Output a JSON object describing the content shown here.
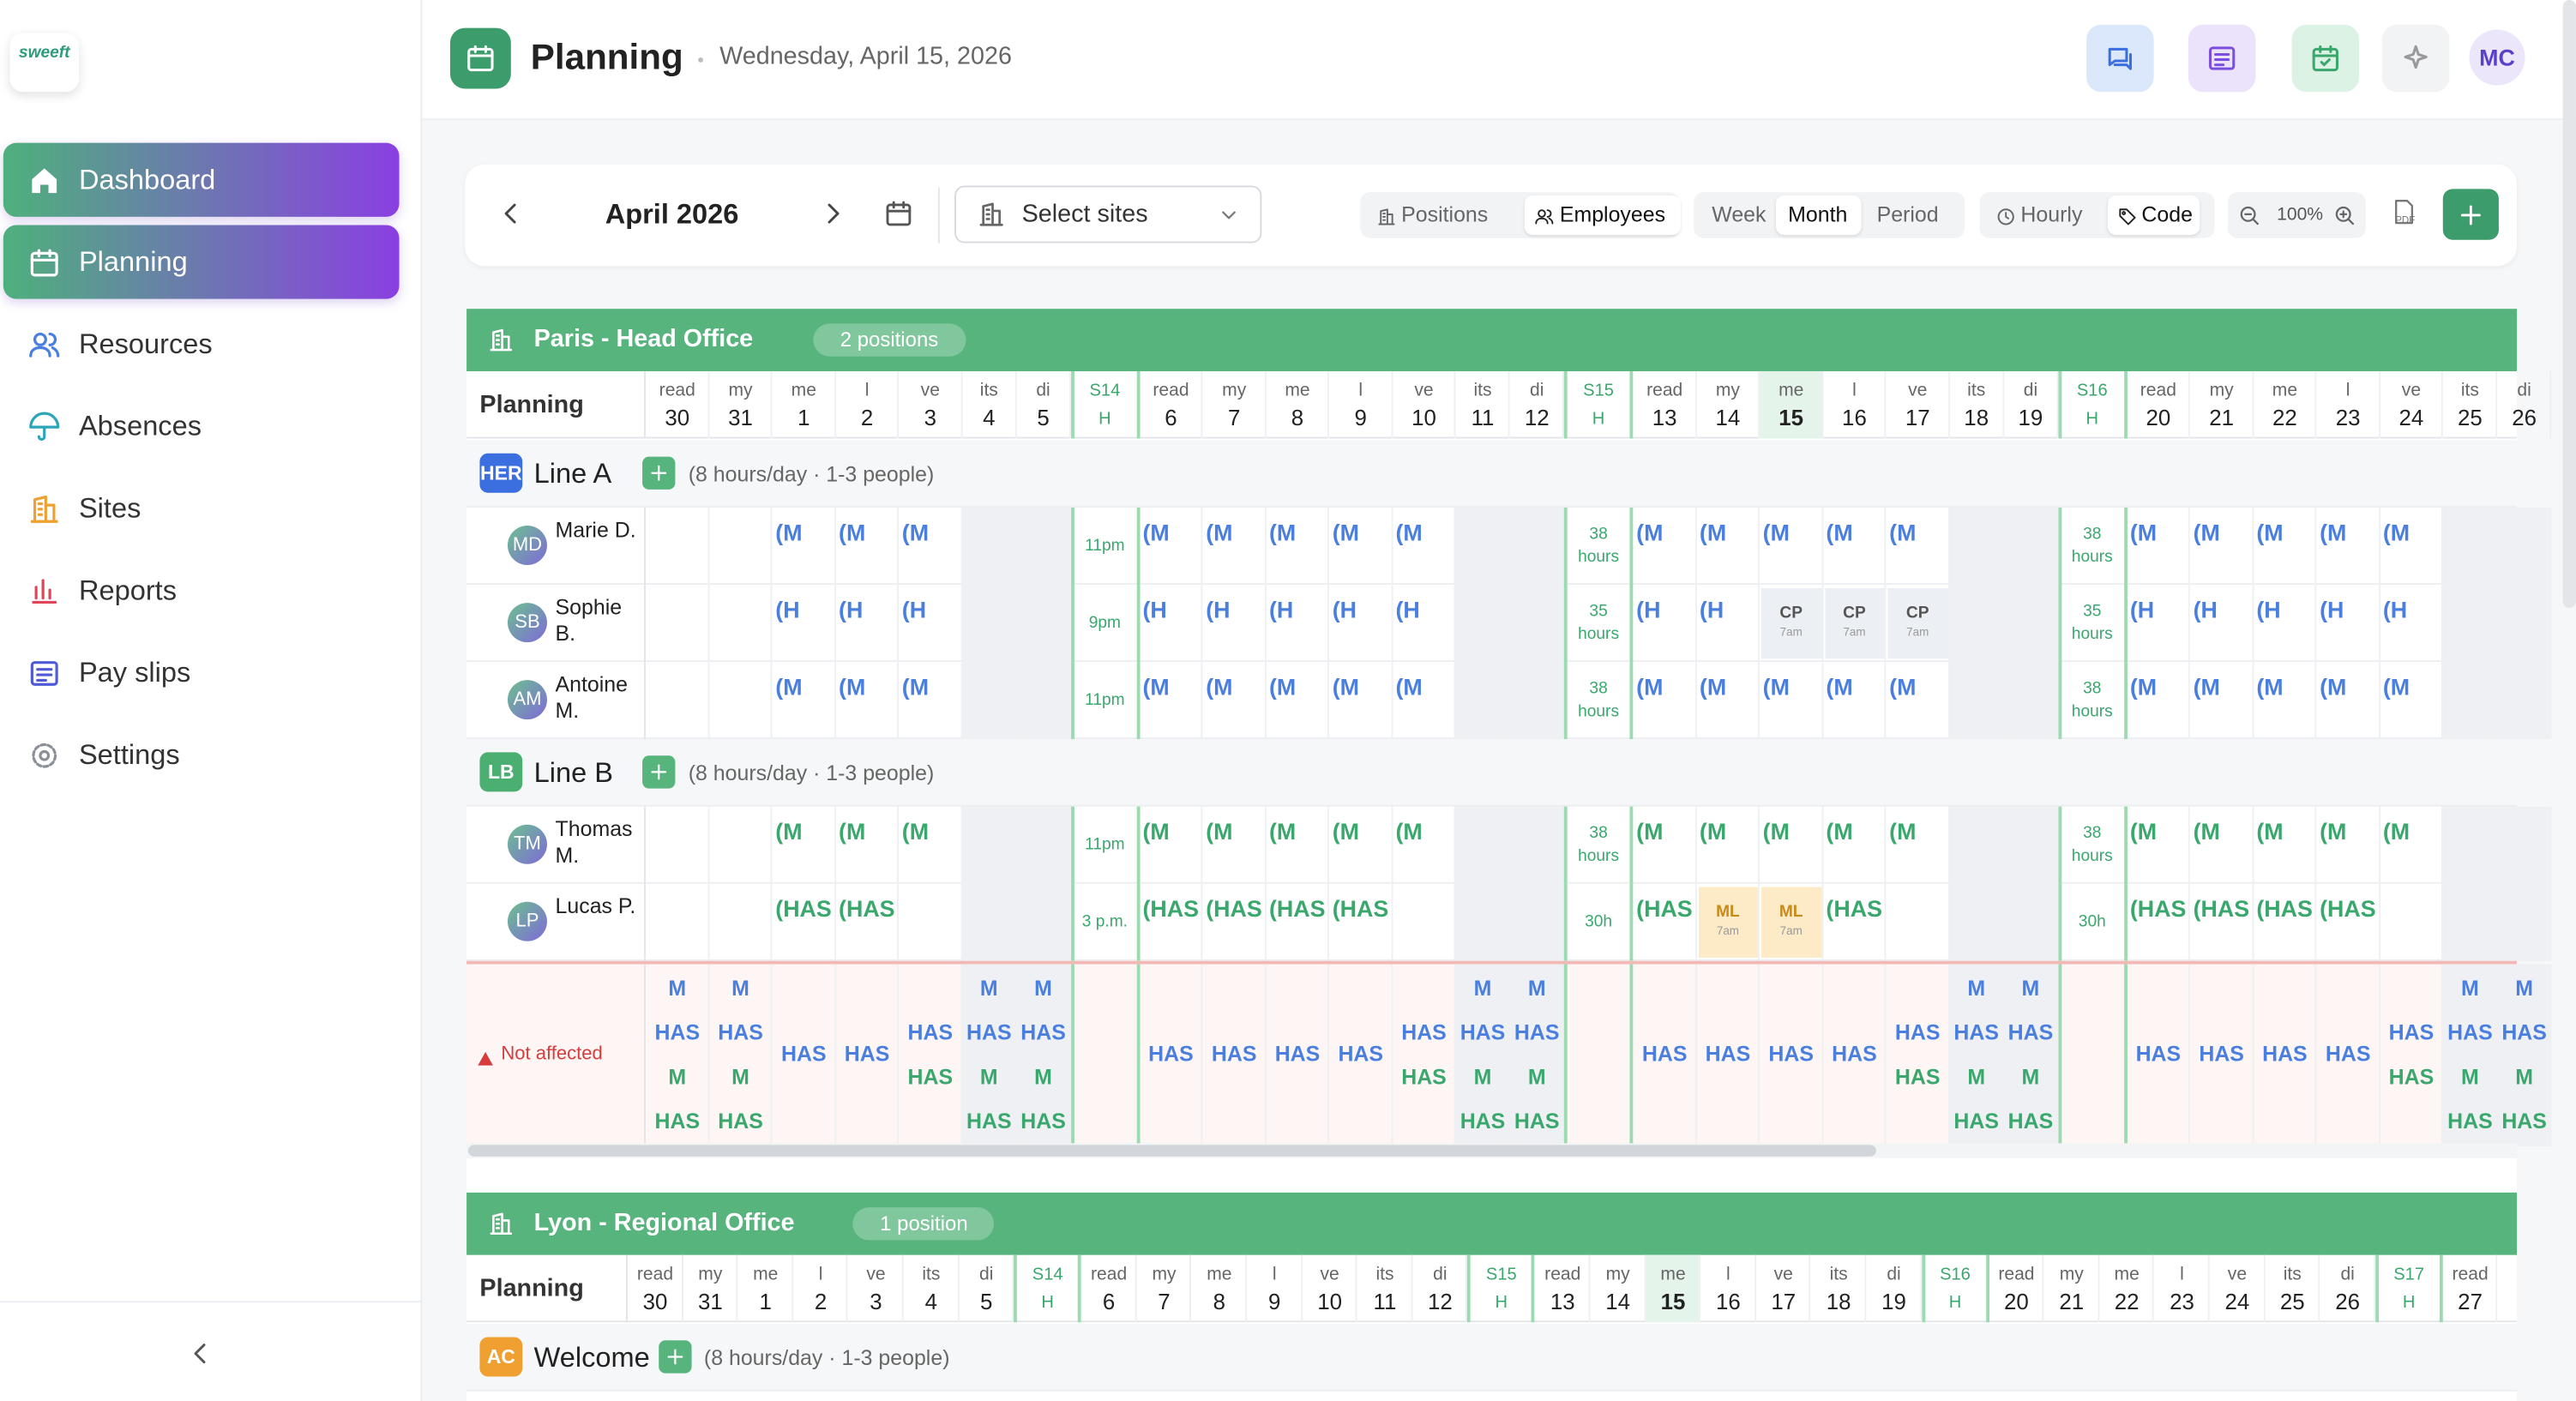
{
  "sidebar": {
    "logo": "sweeft",
    "nav": [
      "Dashboard",
      "Planning",
      "Resources",
      "Absences",
      "Sites",
      "Reports",
      "Pay slips",
      "Settings"
    ]
  },
  "header": {
    "title": "Planning",
    "date": "Wednesday, April 15, 2026",
    "avatar": "MC"
  },
  "toolbar": {
    "month": "April 2026",
    "sites": "Select sites",
    "view_by": [
      "Positions",
      "Employees"
    ],
    "ranges": [
      "Week",
      "Month",
      "Period"
    ],
    "display": [
      "Hourly",
      "Code"
    ],
    "zoom": "100%",
    "export": "PDF"
  },
  "absence_colors": {
    "CP": "#eceff4",
    "ML": "#fcebc6"
  },
  "sites": [
    {
      "name": "Paris - Head Office",
      "badge": "2 positions",
      "planning_label": "Planning",
      "columns": [
        [
          "read",
          "30"
        ],
        [
          "my",
          "31"
        ],
        [
          "me",
          "1"
        ],
        [
          "l",
          "2"
        ],
        [
          "ve",
          "3"
        ],
        [
          "its",
          "4"
        ],
        [
          "di",
          "5"
        ],
        [
          "S14",
          "H"
        ],
        [
          "read",
          "6"
        ],
        [
          "my",
          "7"
        ],
        [
          "me",
          "8"
        ],
        [
          "l",
          "9"
        ],
        [
          "ve",
          "10"
        ],
        [
          "its",
          "11"
        ],
        [
          "di",
          "12"
        ],
        [
          "S15",
          "H"
        ],
        [
          "read",
          "13"
        ],
        [
          "my",
          "14"
        ],
        [
          "me",
          "15"
        ],
        [
          "l",
          "16"
        ],
        [
          "ve",
          "17"
        ],
        [
          "its",
          "18"
        ],
        [
          "di",
          "19"
        ],
        [
          "S16",
          "H"
        ],
        [
          "read",
          "20"
        ],
        [
          "my",
          "21"
        ],
        [
          "me",
          "22"
        ],
        [
          "l",
          "23"
        ],
        [
          "ve",
          "24"
        ],
        [
          "its",
          "25"
        ],
        [
          "di",
          "26"
        ]
      ],
      "lines": [
        {
          "abbr": "HER",
          "name": "Line A",
          "info": "(8 hours/day · 1-3 people)",
          "badge_color": "#3b6fe0",
          "color": "#4a7fe0",
          "employees": [
            {
              "initials": "MD",
              "name": "Marie D.",
              "cells": [
                null,
                null,
                "(M",
                "(M",
                "(M",
                null,
                null,
                "11pm",
                "(M",
                "(M",
                "(M",
                "(M",
                "(M",
                null,
                null,
                "38 hours",
                "(M",
                "(M",
                "(M",
                "(M",
                "(M",
                null,
                null,
                "38 hours",
                "(M",
                "(M",
                "(M",
                "(M",
                "(M",
                null,
                null
              ]
            },
            {
              "initials": "SB",
              "name": "Sophie B.",
              "cells": [
                null,
                null,
                "(H",
                "(H",
                "(H",
                null,
                null,
                "9pm",
                "(H",
                "(H",
                "(H",
                "(H",
                "(H",
                null,
                null,
                "35 hours",
                "(H",
                "(H",
                [
                  "CP",
                  "7am"
                ],
                [
                  "CP",
                  "7am"
                ],
                [
                  "CP",
                  "7am"
                ],
                null,
                null,
                "35 hours",
                "(H",
                "(H",
                "(H",
                "(H",
                "(H",
                null,
                null
              ]
            },
            {
              "initials": "AM",
              "name": "Antoine M.",
              "cells": [
                null,
                null,
                "(M",
                "(M",
                "(M",
                null,
                null,
                "11pm",
                "(M",
                "(M",
                "(M",
                "(M",
                "(M",
                null,
                null,
                "38 hours",
                "(M",
                "(M",
                "(M",
                "(M",
                "(M",
                null,
                null,
                "38 hours",
                "(M",
                "(M",
                "(M",
                "(M",
                "(M",
                null,
                null
              ]
            }
          ]
        },
        {
          "abbr": "LB",
          "name": "Line B",
          "info": "(8 hours/day · 1-3 people)",
          "badge_color": "#4caf72",
          "color": "#3aa76d",
          "employees": [
            {
              "initials": "TM",
              "name": "Thomas M.",
              "cells": [
                null,
                null,
                "(M",
                "(M",
                "(M",
                null,
                null,
                "11pm",
                "(M",
                "(M",
                "(M",
                "(M",
                "(M",
                null,
                null,
                "38 hours",
                "(M",
                "(M",
                "(M",
                "(M",
                "(M",
                null,
                null,
                "38 hours",
                "(M",
                "(M",
                "(M",
                "(M",
                "(M",
                null,
                null
              ]
            },
            {
              "initials": "LP",
              "name": "Lucas P.",
              "cells": [
                null,
                null,
                "(HAS",
                "(HAS",
                null,
                null,
                null,
                "3 p.m.",
                "(HAS",
                "(HAS",
                "(HAS",
                "(HAS",
                null,
                null,
                null,
                "30h",
                "(HAS",
                [
                  "ML",
                  "7am"
                ],
                [
                  "ML",
                  "7am"
                ],
                "(HAS",
                null,
                null,
                null,
                "30h",
                "(HAS",
                "(HAS",
                "(HAS",
                "(HAS",
                null,
                null,
                null
              ]
            }
          ]
        }
      ],
      "unassigned": {
        "label": "Not affected",
        "cells": [
          [
            "M",
            "HAS",
            "M",
            "HAS"
          ],
          [
            "M",
            "HAS",
            "M",
            "HAS"
          ],
          [
            "HAS"
          ],
          [
            "HAS"
          ],
          [
            "HAS",
            "HAS"
          ],
          [
            "M",
            "HAS",
            "M",
            "HAS"
          ],
          [
            "M",
            "HAS",
            "M",
            "HAS"
          ],
          null,
          [
            "HAS"
          ],
          [
            "HAS"
          ],
          [
            "HAS"
          ],
          [
            "HAS"
          ],
          [
            "HAS",
            "HAS"
          ],
          [
            "M",
            "HAS",
            "M",
            "HAS"
          ],
          [
            "M",
            "HAS",
            "M",
            "HAS"
          ],
          null,
          [
            "HAS"
          ],
          [
            "HAS"
          ],
          [
            "HAS"
          ],
          [
            "HAS"
          ],
          [
            "HAS",
            "HAS"
          ],
          [
            "M",
            "HAS",
            "M",
            "HAS"
          ],
          [
            "M",
            "HAS",
            "M",
            "HAS"
          ],
          null,
          [
            "HAS"
          ],
          [
            "HAS"
          ],
          [
            "HAS"
          ],
          [
            "HAS"
          ],
          [
            "HAS",
            "HAS"
          ],
          [
            "M",
            "HAS",
            "M",
            "HAS"
          ],
          [
            "M",
            "HAS",
            "M",
            "HAS"
          ]
        ]
      }
    },
    {
      "name": "Lyon - Regional Office",
      "badge": "1 position",
      "planning_label": "Planning",
      "columns": [
        [
          "read",
          "30"
        ],
        [
          "my",
          "31"
        ],
        [
          "me",
          "1"
        ],
        [
          "l",
          "2"
        ],
        [
          "ve",
          "3"
        ],
        [
          "its",
          "4"
        ],
        [
          "di",
          "5"
        ],
        [
          "S14",
          "H"
        ],
        [
          "read",
          "6"
        ],
        [
          "my",
          "7"
        ],
        [
          "me",
          "8"
        ],
        [
          "l",
          "9"
        ],
        [
          "ve",
          "10"
        ],
        [
          "its",
          "11"
        ],
        [
          "di",
          "12"
        ],
        [
          "S15",
          "H"
        ],
        [
          "read",
          "13"
        ],
        [
          "my",
          "14"
        ],
        [
          "me",
          "15"
        ],
        [
          "l",
          "16"
        ],
        [
          "ve",
          "17"
        ],
        [
          "its",
          "18"
        ],
        [
          "di",
          "19"
        ],
        [
          "S16",
          "H"
        ],
        [
          "read",
          "20"
        ],
        [
          "my",
          "21"
        ],
        [
          "me",
          "22"
        ],
        [
          "l",
          "23"
        ],
        [
          "ve",
          "24"
        ],
        [
          "its",
          "25"
        ],
        [
          "di",
          "26"
        ],
        [
          "S17",
          "H"
        ],
        [
          "read",
          "27"
        ]
      ],
      "lines": [
        {
          "abbr": "AC",
          "name": "Welcome",
          "info": "(8 hours/day · 1-3 people)",
          "badge_color": "#f0a030",
          "color": "#3aa76d",
          "employees": []
        }
      ]
    }
  ]
}
